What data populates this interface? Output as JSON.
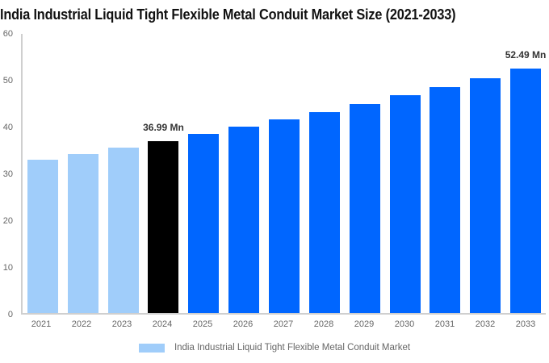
{
  "title": "India Industrial Liquid Tight Flexible Metal Conduit Market Size (2021-2033)",
  "chart_data": {
    "type": "bar",
    "title": "India Industrial Liquid Tight Flexible Metal Conduit Market Size (2021-2033)",
    "categories": [
      "2021",
      "2022",
      "2023",
      "2024",
      "2025",
      "2026",
      "2027",
      "2028",
      "2029",
      "2030",
      "2031",
      "2032",
      "2033"
    ],
    "series": [
      {
        "name": "India Industrial Liquid Tight Flexible Metal Conduit Market",
        "values": [
          32.91,
          34.22,
          35.58,
          36.99,
          38.46,
          40.0,
          41.59,
          43.24,
          44.96,
          46.74,
          48.6,
          50.53,
          52.49
        ]
      }
    ],
    "unit": "Mn",
    "data_labels": [
      "",
      "",
      "",
      "36.99 Mn",
      "",
      "",
      "",
      "",
      "",
      "",
      "",
      "",
      "52.49 Mn"
    ],
    "bar_roles": [
      "historical",
      "historical",
      "historical",
      "highlight",
      "forecast",
      "forecast",
      "forecast",
      "forecast",
      "forecast",
      "forecast",
      "forecast",
      "forecast",
      "forecast"
    ],
    "palette": {
      "historical": "#a0cdfa",
      "highlight": "#000000",
      "forecast": "#0066ff"
    },
    "xlabel": "",
    "ylabel": "",
    "ylim": [
      0,
      60
    ],
    "yticks": [
      0,
      10,
      20,
      30,
      40,
      50,
      60
    ],
    "grid": false,
    "legend": {
      "position": "bottom",
      "label": "India Industrial Liquid Tight Flexible Metal Conduit Market",
      "swatch_color": "#a0cdfa"
    }
  }
}
